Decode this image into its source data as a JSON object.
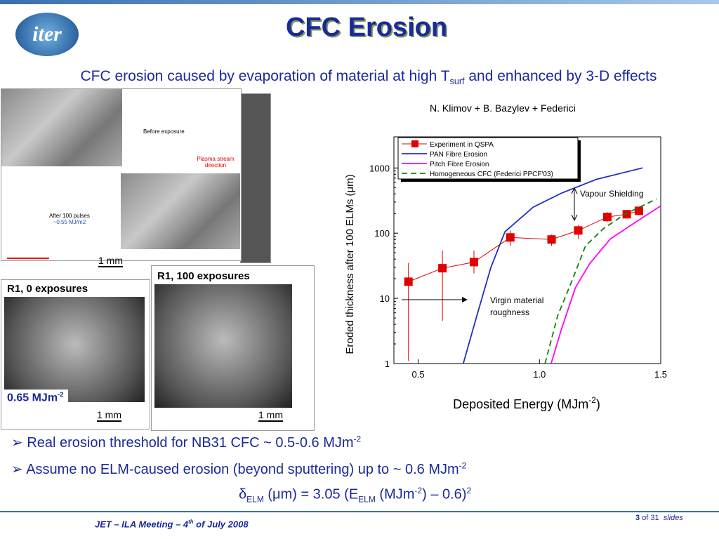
{
  "header": {
    "logo": "iter",
    "title": "CFC Erosion",
    "subtitle": [
      "CFC erosion caused by evaporation of material at high T",
      "surf",
      "  and enhanced by  3-D effects"
    ],
    "credit": "N. Klimov + B. Bazylev + Federici"
  },
  "images": {
    "before": "Before exposure",
    "direction": "Plasma stream direction",
    "after": [
      "After 100 pulses",
      "~0.55 MJ/m2"
    ],
    "scale_1": "1 mm",
    "r1_0": "R1, 0 exposures",
    "energy": [
      "0.65 MJm",
      "-2"
    ],
    "scale_2": "1 mm",
    "r1_100": "R1, 100 exposures",
    "scale_3": "1 mm"
  },
  "chart_data": {
    "type": "line",
    "log_y": true,
    "ylabel": "Eroded thickness after 100 ELMs (μm)",
    "xlabel": [
      "Deposited Energy (MJm",
      "-2",
      ")"
    ],
    "xlim": [
      0.4,
      1.5
    ],
    "ylim": [
      1,
      3000
    ],
    "xticks": [
      0.5,
      {
        "value": 1,
        "label": "1.0"
      },
      1.5
    ],
    "yticks": [
      1,
      10,
      100,
      1000
    ],
    "series": [
      {
        "name": "Experiment in QSPA",
        "color": "#e00000",
        "marker": "square",
        "x": [
          0.46,
          0.6,
          0.73,
          0.88,
          1.05,
          1.16,
          1.28,
          1.36,
          1.41
        ],
        "values": [
          18,
          29,
          36,
          86,
          80,
          110,
          177,
          195,
          220
        ],
        "low": [
          1.1,
          4.5,
          24,
          64,
          64,
          82,
          150,
          170,
          190
        ],
        "high": [
          35,
          54,
          54,
          110,
          95,
          134,
          210,
          220,
          255
        ]
      },
      {
        "name": "PAN Fibre Erosion",
        "color": "#2030c0",
        "dash": false,
        "x": [
          0.686,
          0.742,
          0.8,
          0.858,
          0.974,
          1.09,
          1.235,
          1.425
        ],
        "values": [
          1,
          5.4,
          30,
          105,
          250,
          410,
          670,
          1000
        ]
      },
      {
        "name": "Pitch Fibre Erosion",
        "color": "#ff00ff",
        "dash": false,
        "x": [
          1.048,
          1.09,
          1.148,
          1.207,
          1.293,
          1.38,
          1.5
        ],
        "values": [
          1,
          3.3,
          14.5,
          34,
          82,
          134,
          262
        ]
      },
      {
        "name": "Homogeneous CFC (Federici PPCF'03)",
        "color": "#108010",
        "dash": true,
        "x": [
          1.023,
          1.075,
          1.134,
          1.19,
          1.265,
          1.352,
          1.483
        ],
        "values": [
          1,
          5.4,
          18.6,
          64,
          118,
          195,
          335
        ]
      }
    ],
    "annotations": [
      "Vapour Shielding",
      "Virgin material",
      "roughness"
    ]
  },
  "bullets": [
    [
      "Real erosion threshold for NB31 CFC ~ 0.5-0.6 MJm",
      "-2"
    ],
    [
      "Assume no ELM-caused erosion (beyond sputtering) up to ~ 0.6 MJm",
      "-2"
    ]
  ],
  "formula": [
    "δ",
    "ELM",
    " (μm) = 3.05 (E",
    "ELM",
    " (MJm",
    "-2",
    ") – 0.6)",
    "2"
  ],
  "footer": {
    "meeting": [
      "JET – ILA Meeting – 4",
      "th",
      " of July 2008"
    ],
    "page": "3",
    "of": "of 31",
    "slides": "slides"
  }
}
